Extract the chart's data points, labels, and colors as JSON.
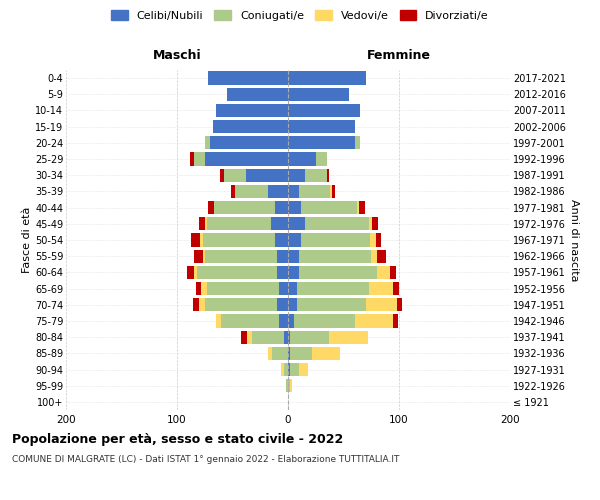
{
  "age_groups": [
    "100+",
    "95-99",
    "90-94",
    "85-89",
    "80-84",
    "75-79",
    "70-74",
    "65-69",
    "60-64",
    "55-59",
    "50-54",
    "45-49",
    "40-44",
    "35-39",
    "30-34",
    "25-29",
    "20-24",
    "15-19",
    "10-14",
    "5-9",
    "0-4"
  ],
  "birth_years": [
    "≤ 1921",
    "1922-1926",
    "1927-1931",
    "1932-1936",
    "1937-1941",
    "1942-1946",
    "1947-1951",
    "1952-1956",
    "1957-1961",
    "1962-1966",
    "1967-1971",
    "1972-1976",
    "1977-1981",
    "1982-1986",
    "1987-1991",
    "1992-1996",
    "1997-2001",
    "2002-2006",
    "2007-2011",
    "2012-2016",
    "2017-2021"
  ],
  "males": {
    "celibi": [
      0,
      0,
      0,
      0,
      4,
      8,
      10,
      8,
      10,
      10,
      12,
      15,
      12,
      18,
      38,
      75,
      70,
      68,
      65,
      55,
      72
    ],
    "coniugati": [
      0,
      2,
      4,
      14,
      28,
      52,
      65,
      65,
      72,
      65,
      65,
      58,
      55,
      30,
      20,
      10,
      5,
      0,
      0,
      0,
      0
    ],
    "vedovi": [
      0,
      0,
      2,
      4,
      5,
      5,
      5,
      5,
      3,
      2,
      2,
      2,
      0,
      0,
      0,
      0,
      0,
      0,
      0,
      0,
      0
    ],
    "divorziati": [
      0,
      0,
      0,
      0,
      5,
      0,
      6,
      5,
      6,
      8,
      8,
      5,
      5,
      3,
      3,
      3,
      0,
      0,
      0,
      0,
      0
    ]
  },
  "females": {
    "nubili": [
      0,
      0,
      2,
      2,
      2,
      5,
      8,
      8,
      10,
      10,
      12,
      15,
      12,
      10,
      15,
      25,
      60,
      60,
      65,
      55,
      70
    ],
    "coniugate": [
      0,
      2,
      8,
      20,
      35,
      55,
      62,
      65,
      70,
      65,
      62,
      58,
      50,
      28,
      20,
      10,
      5,
      0,
      0,
      0,
      0
    ],
    "vedove": [
      0,
      2,
      8,
      25,
      35,
      35,
      28,
      22,
      12,
      5,
      5,
      3,
      2,
      2,
      0,
      0,
      0,
      0,
      0,
      0,
      0
    ],
    "divorziate": [
      0,
      0,
      0,
      0,
      0,
      4,
      5,
      5,
      5,
      8,
      5,
      5,
      5,
      2,
      2,
      0,
      0,
      0,
      0,
      0,
      0
    ]
  },
  "colors": {
    "celibi_nubili": "#4472C4",
    "coniugati": "#AECA8B",
    "vedovi": "#FFD966",
    "divorziati": "#C00000"
  },
  "title": "Popolazione per età, sesso e stato civile - 2022",
  "subtitle": "COMUNE DI MALGRATE (LC) - Dati ISTAT 1° gennaio 2022 - Elaborazione TUTTITALIA.IT",
  "xlabel_left": "Maschi",
  "xlabel_right": "Femmine",
  "ylabel_left": "Fasce di età",
  "ylabel_right": "Anni di nascita",
  "xlim": 200,
  "background_color": "#ffffff",
  "grid_color": "#cccccc"
}
